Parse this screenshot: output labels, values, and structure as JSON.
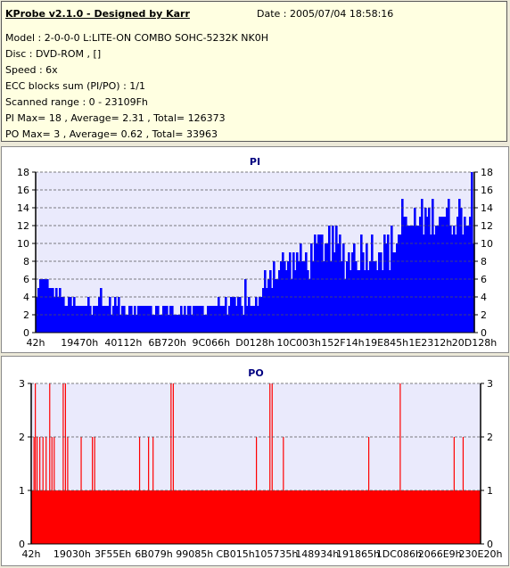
{
  "header": {
    "title": "KProbe v2.1.0 - Designed by Karr",
    "date": "Date : 2005/07/04 18:58:16"
  },
  "info": {
    "model": "Model : 2-0-0-0 L:LITE-ON COMBO SOHC-5232K NK0H",
    "disc": "Disc : DVD-ROM ,  []",
    "speed": "Speed : 6x",
    "ecc": "ECC blocks sum (PI/PO) : 1/1",
    "range": "Scanned range : 0 - 23109Fh",
    "pi_stats": "PI Max= 18 , Average= 2.31 , Total= 126373",
    "po_stats": "PO Max= 3 , Average= 0.62 , Total= 33963"
  },
  "colors": {
    "pi_fill": "#0000ff",
    "po_fill": "#ff0000",
    "plot_bg": "#eaeafc",
    "title_color": "#000080"
  },
  "chart_data": [
    {
      "type": "bar",
      "title": "PI",
      "ylim": [
        0,
        18
      ],
      "yticks": [
        "0",
        "2",
        "4",
        "6",
        "8",
        "10",
        "12",
        "14",
        "16",
        "18"
      ],
      "xticks": [
        "42h",
        "19470h",
        "40112h",
        "6B720h",
        "9C066h",
        "D0128h",
        "10C003h",
        "152F14h",
        "19E845h",
        "1E2312h",
        "20D128h"
      ],
      "grid": true,
      "profile": [
        {
          "x": 0.0,
          "y": 4
        },
        {
          "x": 0.01,
          "y": 6
        },
        {
          "x": 0.03,
          "y": 5
        },
        {
          "x": 0.05,
          "y": 4
        },
        {
          "x": 0.08,
          "y": 3
        },
        {
          "x": 0.15,
          "y": 3
        },
        {
          "x": 0.25,
          "y": 2.5
        },
        {
          "x": 0.35,
          "y": 2.5
        },
        {
          "x": 0.45,
          "y": 3
        },
        {
          "x": 0.51,
          "y": 3
        },
        {
          "x": 0.53,
          "y": 7
        },
        {
          "x": 0.56,
          "y": 7
        },
        {
          "x": 0.62,
          "y": 8
        },
        {
          "x": 0.66,
          "y": 10
        },
        {
          "x": 0.71,
          "y": 8
        },
        {
          "x": 0.76,
          "y": 9
        },
        {
          "x": 0.81,
          "y": 9
        },
        {
          "x": 0.83,
          "y": 11
        },
        {
          "x": 0.88,
          "y": 12
        },
        {
          "x": 0.93,
          "y": 13
        },
        {
          "x": 1.0,
          "y": 12
        }
      ],
      "max": 18
    },
    {
      "type": "bar",
      "title": "PO",
      "ylim": [
        0,
        3
      ],
      "yticks": [
        "0",
        "1",
        "2",
        "3"
      ],
      "xticks": [
        "42h",
        "19030h",
        "3F55Eh",
        "6B079h",
        "99085h",
        "CB015h",
        "105735h",
        "148934h",
        "191865h",
        "1DC086h",
        "2066E9h",
        "230E20h"
      ],
      "grid": true,
      "baseline": 1,
      "max": 3
    }
  ]
}
